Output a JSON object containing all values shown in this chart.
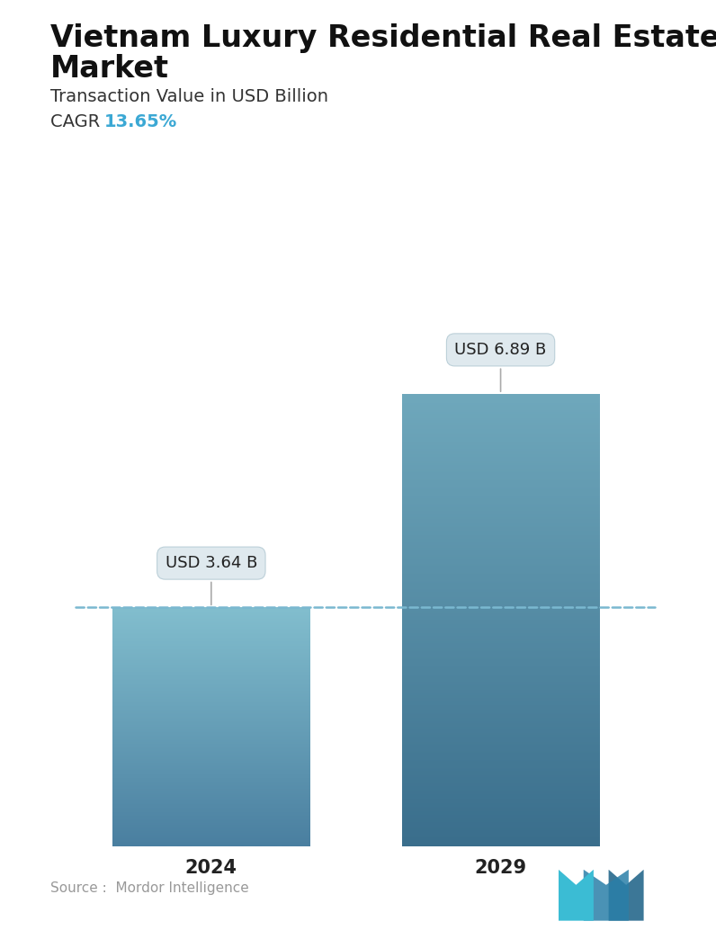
{
  "title_line1": "Vietnam Luxury Residential Real Estate",
  "title_line2": "Market",
  "subtitle": "Transaction Value in USD Billion",
  "cagr_label": "CAGR  ",
  "cagr_value": "13.65%",
  "cagr_color": "#3ba8d4",
  "categories": [
    "2024",
    "2029"
  ],
  "values": [
    3.64,
    6.89
  ],
  "labels": [
    "USD 3.64 B",
    "USD 6.89 B"
  ],
  "bar_top_color_1": "#82bece",
  "bar_bottom_color_1": "#4a7fa0",
  "bar_top_color_2": "#6fa8bc",
  "bar_bottom_color_2": "#3a6e8c",
  "dashed_line_y": 3.64,
  "dashed_line_color": "#7ab8d0",
  "ylim": [
    0,
    8.5
  ],
  "source_text": "Source :  Mordor Intelligence",
  "source_color": "#999999",
  "bg_color": "#ffffff",
  "title_fontsize": 24,
  "subtitle_fontsize": 14,
  "cagr_fontsize": 14,
  "label_fontsize": 13,
  "tick_fontsize": 15,
  "bar_positions": [
    0.25,
    0.72
  ],
  "bar_width": 0.32,
  "xlim": [
    0.0,
    1.0
  ]
}
